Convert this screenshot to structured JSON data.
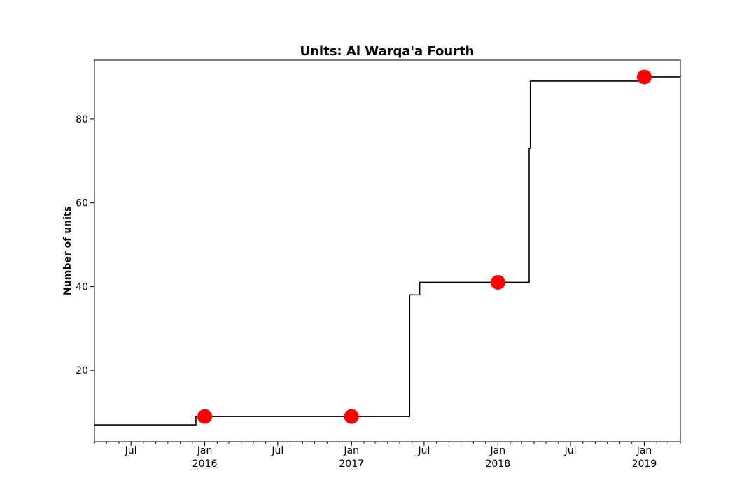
{
  "chart_data": {
    "type": "line",
    "title": "Units: Al Warqa'a Fourth",
    "xlabel": "",
    "ylabel": "Number of units",
    "xlim": [
      "2015-04-01",
      "2019-04-01"
    ],
    "ylim": [
      3,
      94
    ],
    "y_ticks": [
      20,
      40,
      60,
      80
    ],
    "x_major_ticks": [
      {
        "date": "2015-07-01",
        "label": "Jul",
        "year": ""
      },
      {
        "date": "2016-01-01",
        "label": "Jan",
        "year": "2016"
      },
      {
        "date": "2016-07-01",
        "label": "Jul",
        "year": ""
      },
      {
        "date": "2017-01-01",
        "label": "Jan",
        "year": "2017"
      },
      {
        "date": "2017-07-01",
        "label": "Jul",
        "year": ""
      },
      {
        "date": "2018-01-01",
        "label": "Jan",
        "year": "2018"
      },
      {
        "date": "2018-07-01",
        "label": "Jul",
        "year": ""
      },
      {
        "date": "2019-01-01",
        "label": "Jan",
        "year": "2019"
      }
    ],
    "x_minor_tick_interval": "month",
    "grid": false,
    "legend": false,
    "series": [
      {
        "style": "step",
        "color": "#000000",
        "points": [
          {
            "x": "2015-04-01",
            "y": 7
          },
          {
            "x": "2015-12-10",
            "y": 9
          },
          {
            "x": "2017-05-26",
            "y": 38
          },
          {
            "x": "2017-06-20",
            "y": 41
          },
          {
            "x": "2018-03-20",
            "y": 73
          },
          {
            "x": "2018-03-23",
            "y": 89
          },
          {
            "x": "2019-01-04",
            "y": 90
          },
          {
            "x": "2019-04-01",
            "y": 90
          }
        ]
      },
      {
        "style": "markers",
        "color": "#ff0000",
        "points": [
          {
            "x": "2016-01-01",
            "y": 9
          },
          {
            "x": "2017-01-01",
            "y": 9
          },
          {
            "x": "2018-01-01",
            "y": 41
          },
          {
            "x": "2019-01-01",
            "y": 90
          }
        ]
      }
    ]
  }
}
